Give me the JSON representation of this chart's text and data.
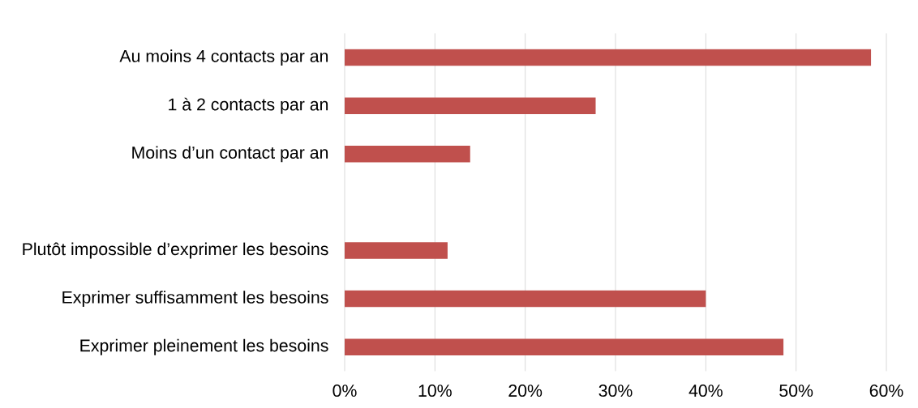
{
  "chart_data": {
    "type": "bar",
    "orientation": "horizontal",
    "categories": [
      "Au moins 4 contacts par an",
      "1 à 2 contacts par an",
      "Moins d’un contact par an",
      null,
      "Plutôt impossible d’exprimer les besoins",
      "Exprimer suffisamment les besoins",
      "Exprimer pleinement les besoins"
    ],
    "values": [
      58.3,
      27.8,
      13.9,
      null,
      11.4,
      40.0,
      48.6
    ],
    "color": "#c0504d",
    "xlim": [
      0,
      60
    ],
    "xticks": [
      {
        "value": 0,
        "label": "0%"
      },
      {
        "value": 10,
        "label": "10%"
      },
      {
        "value": 20,
        "label": "20%"
      },
      {
        "value": 30,
        "label": "30%"
      },
      {
        "value": 40,
        "label": "40%"
      },
      {
        "value": 50,
        "label": "50%"
      },
      {
        "value": 60,
        "label": "60%"
      }
    ],
    "grid": "x"
  }
}
